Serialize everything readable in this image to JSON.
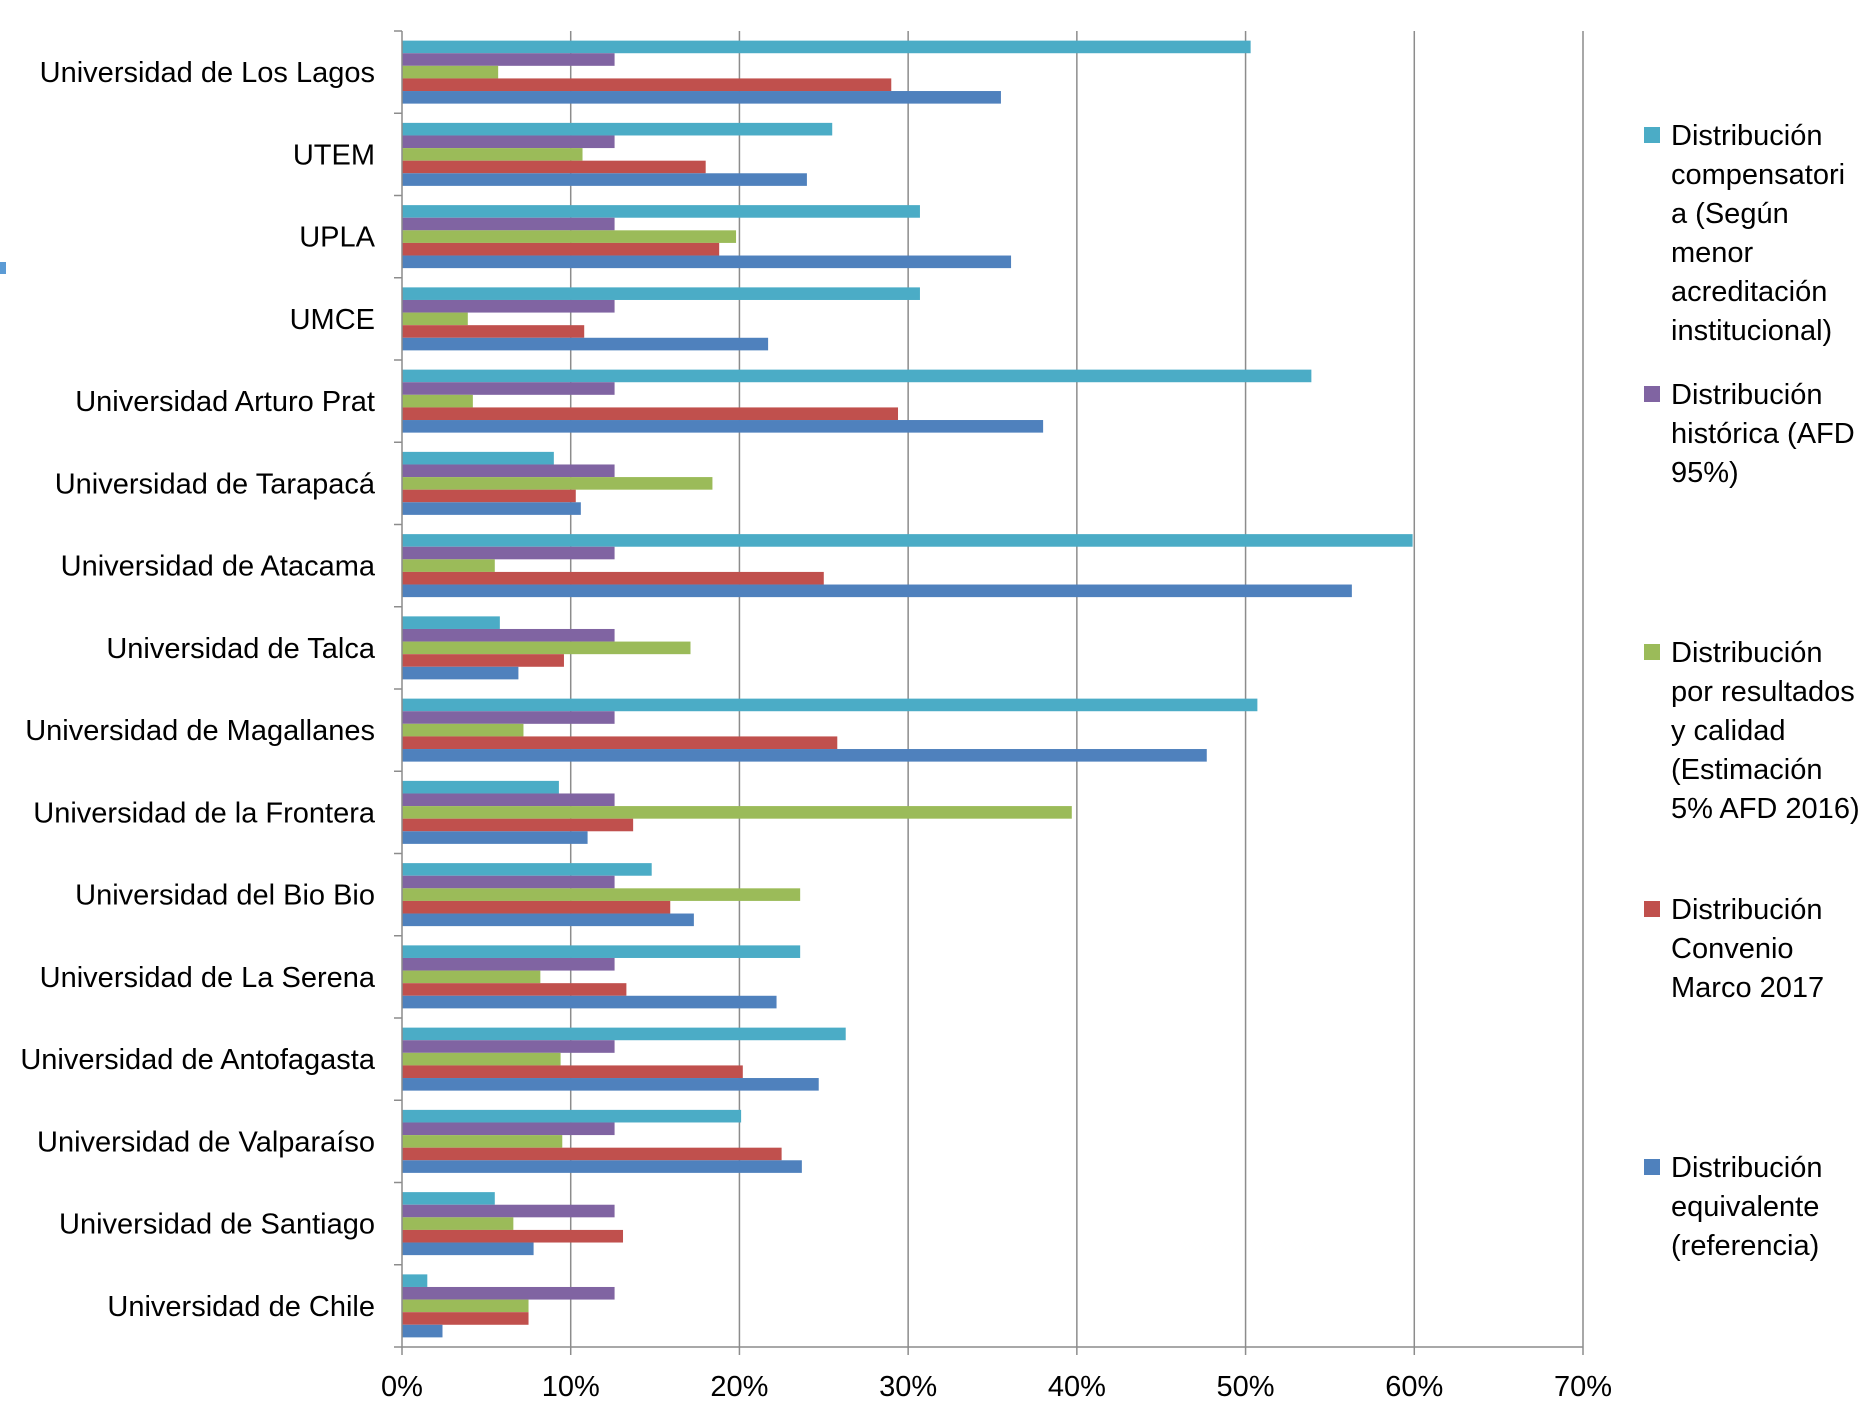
{
  "chart_data": {
    "type": "bar",
    "orientation": "horizontal",
    "title": "",
    "xlabel": "",
    "ylabel": "",
    "xlim": [
      0,
      0.7
    ],
    "x_ticks": [
      "0%",
      "10%",
      "20%",
      "30%",
      "40%",
      "50%",
      "60%",
      "70%"
    ],
    "grid": true,
    "legend_position": "right",
    "categories": [
      "Universidad de Los Lagos",
      "UTEM",
      "UPLA",
      "UMCE",
      "Universidad Arturo Prat",
      "Universidad de Tarapacá",
      "Universidad de Atacama",
      "Universidad de Talca",
      "Universidad de Magallanes",
      "Universidad de la Frontera",
      "Universidad del  Bio Bio",
      "Universidad de La Serena",
      "Universidad de Antofagasta",
      "Universidad de Valparaíso",
      "Universidad de Santiago",
      "Universidad de Chile"
    ],
    "series": [
      {
        "name": "Distribución compensatoria (Según menor acreditación institucional)",
        "legend_lines": [
          "Distribución",
          "compensatori",
          "a (Según",
          "menor",
          "acreditación",
          "institucional)"
        ],
        "color": "#4bacc6",
        "values": [
          0.503,
          0.255,
          0.307,
          0.307,
          0.539,
          0.09,
          0.599,
          0.058,
          0.507,
          0.093,
          0.148,
          0.236,
          0.263,
          0.201,
          0.055,
          0.015
        ]
      },
      {
        "name": "Distribución histórica (AFD 95%)",
        "legend_lines": [
          "Distribución",
          "histórica (AFD",
          "95%)"
        ],
        "color": "#8064a2",
        "values": [
          0.126,
          0.126,
          0.126,
          0.126,
          0.126,
          0.126,
          0.126,
          0.126,
          0.126,
          0.126,
          0.126,
          0.126,
          0.126,
          0.126,
          0.126,
          0.126
        ]
      },
      {
        "name": "Distribución por resultados y calidad (Estimación 5% AFD 2016)",
        "legend_lines": [
          "Distribución",
          "por resultados",
          "y calidad",
          "(Estimación",
          "5% AFD 2016)"
        ],
        "color": "#9bbb59",
        "values": [
          0.057,
          0.107,
          0.198,
          0.039,
          0.042,
          0.184,
          0.055,
          0.171,
          0.072,
          0.397,
          0.236,
          0.082,
          0.094,
          0.095,
          0.066,
          0.075
        ]
      },
      {
        "name": "Distribución Convenio Marco 2017",
        "legend_lines": [
          "Distribución",
          "Convenio",
          "Marco 2017"
        ],
        "color": "#c0504d",
        "values": [
          0.29,
          0.18,
          0.188,
          0.108,
          0.294,
          0.103,
          0.25,
          0.096,
          0.258,
          0.137,
          0.159,
          0.133,
          0.202,
          0.225,
          0.131,
          0.075
        ]
      },
      {
        "name": "Distribución equivalente (referencia)",
        "legend_lines": [
          "Distribución",
          "equivalente",
          "(referencia)"
        ],
        "color": "#4f81bd",
        "values": [
          0.355,
          0.24,
          0.361,
          0.217,
          0.38,
          0.106,
          0.563,
          0.069,
          0.477,
          0.11,
          0.173,
          0.222,
          0.247,
          0.237,
          0.078,
          0.024
        ]
      }
    ]
  }
}
